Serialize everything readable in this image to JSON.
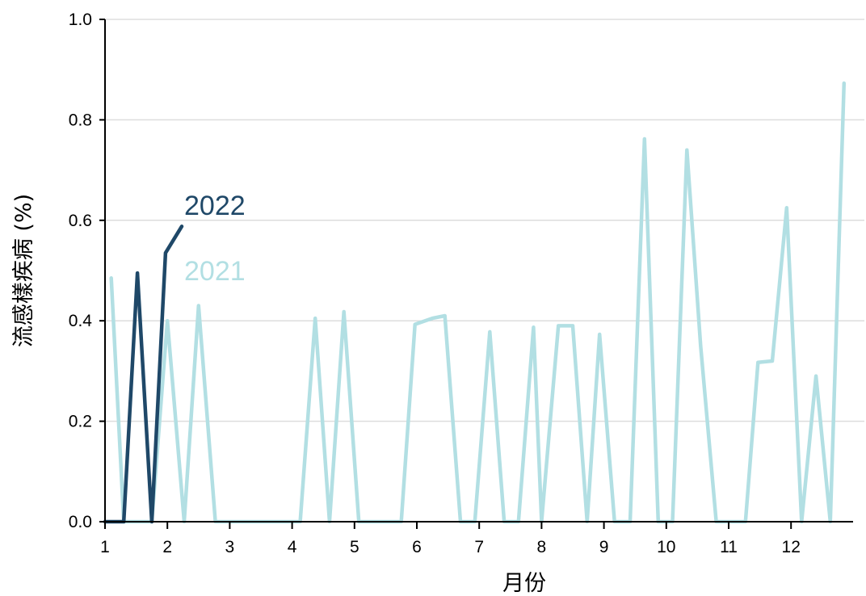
{
  "chart_data": {
    "type": "line",
    "title": "",
    "xlabel": "月份",
    "ylabel": "流感樣疾病 (%)",
    "xlim": [
      1,
      13
    ],
    "ylim": [
      0,
      1
    ],
    "x_ticks": [
      1,
      2,
      3,
      4,
      5,
      6,
      7,
      8,
      9,
      10,
      11,
      12
    ],
    "x_tick_labels": [
      "1",
      "2",
      "3",
      "4",
      "5",
      "6",
      "7",
      "8",
      "9",
      "10",
      "11",
      "12"
    ],
    "y_ticks": [
      0,
      0.2,
      0.4,
      0.6,
      0.8,
      1.0
    ],
    "y_tick_labels": [
      "0.0",
      "0.2",
      "0.4",
      "0.6",
      "0.8",
      "1.0"
    ],
    "grid": "horizontal",
    "legend": "inline labels near series",
    "series": [
      {
        "name": "2021",
        "color": "#b2dfe3",
        "x": [
          1.1,
          1.3,
          1.5,
          1.75,
          2.0,
          2.27,
          2.5,
          2.77,
          3.0,
          3.5,
          4.0,
          4.13,
          4.37,
          4.6,
          4.83,
          5.07,
          5.5,
          5.75,
          5.97,
          6.25,
          6.45,
          6.7,
          6.93,
          7.17,
          7.4,
          7.63,
          7.87,
          8.0,
          8.27,
          8.5,
          8.73,
          8.93,
          9.17,
          9.42,
          9.65,
          9.87,
          10.1,
          10.33,
          10.55,
          10.8,
          11.03,
          11.27,
          11.47,
          11.7,
          11.93,
          12.17,
          12.4,
          12.63,
          12.85
        ],
        "y": [
          0.485,
          0.0,
          0.0,
          0.0,
          0.4,
          0.0,
          0.43,
          0.0,
          0.0,
          0.0,
          0.0,
          0.0,
          0.405,
          0.0,
          0.418,
          0.0,
          0.0,
          0.0,
          0.393,
          0.405,
          0.41,
          0.0,
          0.0,
          0.378,
          0.0,
          0.0,
          0.387,
          0.0,
          0.39,
          0.39,
          0.0,
          0.373,
          0.0,
          0.0,
          0.762,
          0.0,
          0.0,
          0.74,
          0.35,
          0.0,
          0.0,
          0.0,
          0.317,
          0.32,
          0.625,
          0.0,
          0.29,
          0.0,
          0.873
        ]
      },
      {
        "name": "2022",
        "color": "#1f4868",
        "x": [
          1.0,
          1.3,
          1.52,
          1.75,
          1.97,
          2.23
        ],
        "y": [
          0.0,
          0.0,
          0.495,
          0.0,
          0.535,
          0.588
        ]
      }
    ]
  }
}
